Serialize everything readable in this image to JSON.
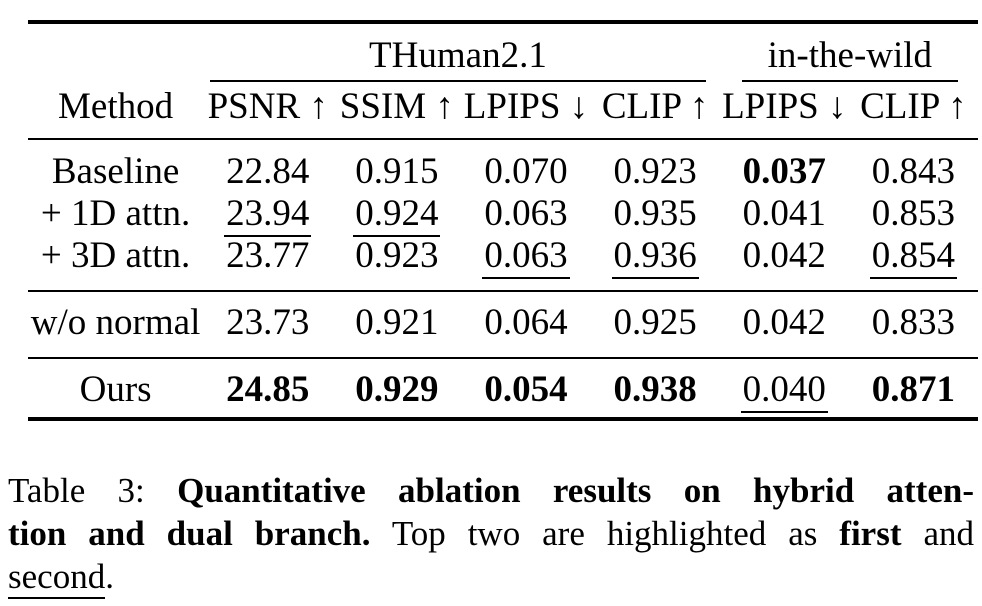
{
  "table": {
    "groups": [
      {
        "label": "THuman2.1"
      },
      {
        "label": "in-the-wild"
      }
    ],
    "columns": [
      "Method",
      "PSNR ↑",
      "SSIM ↑",
      "LPIPS ↓",
      "CLIP ↑",
      "LPIPS ↓",
      "CLIP ↑"
    ],
    "rows": [
      {
        "method": "Baseline",
        "cells": [
          {
            "v": "22.84"
          },
          {
            "v": "0.915"
          },
          {
            "v": "0.070"
          },
          {
            "v": "0.923"
          },
          {
            "v": "0.037",
            "s": "bold"
          },
          {
            "v": "0.843"
          }
        ]
      },
      {
        "method": "+ 1D attn.",
        "cells": [
          {
            "v": "23.94",
            "s": "underline"
          },
          {
            "v": "0.924",
            "s": "underline"
          },
          {
            "v": "0.063"
          },
          {
            "v": "0.935"
          },
          {
            "v": "0.041"
          },
          {
            "v": "0.853"
          }
        ]
      },
      {
        "method": "+ 3D attn.",
        "rule_after": true,
        "cells": [
          {
            "v": "23.77"
          },
          {
            "v": "0.923"
          },
          {
            "v": "0.063",
            "s": "underline"
          },
          {
            "v": "0.936",
            "s": "underline"
          },
          {
            "v": "0.042"
          },
          {
            "v": "0.854",
            "s": "underline"
          }
        ]
      },
      {
        "method": "w/o normal",
        "rule_after": true,
        "cells": [
          {
            "v": "23.73"
          },
          {
            "v": "0.921"
          },
          {
            "v": "0.064"
          },
          {
            "v": "0.925"
          },
          {
            "v": "0.042"
          },
          {
            "v": "0.833"
          }
        ]
      },
      {
        "method": "Ours",
        "cells": [
          {
            "v": "24.85",
            "s": "bold"
          },
          {
            "v": "0.929",
            "s": "bold"
          },
          {
            "v": "0.054",
            "s": "bold"
          },
          {
            "v": "0.938",
            "s": "bold"
          },
          {
            "v": "0.040",
            "s": "underline"
          },
          {
            "v": "0.871",
            "s": "bold"
          }
        ]
      }
    ]
  },
  "caption": {
    "line1": {
      "prefix": "Table 3: ",
      "bold": "Quantitative ablation results on hybrid atten-"
    },
    "line2": {
      "bold1": "tion and dual branch.",
      "regular1": " Top two are highlighted as ",
      "bold2": "first",
      "regular2": " and"
    },
    "line3": {
      "underlined": "second",
      "suffix": "."
    }
  }
}
